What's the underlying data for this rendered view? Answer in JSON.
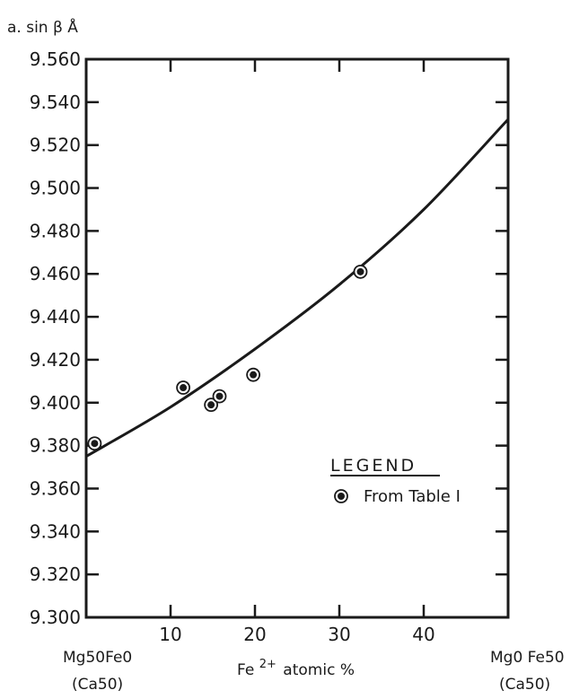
{
  "chart_data": {
    "type": "scatter",
    "title": "",
    "ylabel": "a. sin β Å",
    "xlabel": "Fe2+ atomic %",
    "xlabel_main": "Fe",
    "xlabel_sup": "2+",
    "xlabel_rest": "atomic %",
    "xlim": [
      0,
      50
    ],
    "ylim": [
      9.3,
      9.56
    ],
    "x_ticks": [
      10,
      20,
      30,
      40
    ],
    "y_ticks": [
      "9.300",
      "9.320",
      "9.340",
      "9.360",
      "9.380",
      "9.400",
      "9.420",
      "9.440",
      "9.460",
      "9.480",
      "9.500",
      "9.520",
      "9.540",
      "9.560"
    ],
    "end_labels": {
      "left": {
        "line1": "Mg50Fe0",
        "line2": "(Ca50)"
      },
      "right": {
        "line1": "Mg0 Fe50",
        "line2": "(Ca50)"
      }
    },
    "series": [
      {
        "name": "From Table I",
        "kind": "points",
        "points": [
          {
            "x": 1.0,
            "y": 9.381
          },
          {
            "x": 11.5,
            "y": 9.407
          },
          {
            "x": 14.8,
            "y": 9.399
          },
          {
            "x": 15.8,
            "y": 9.403
          },
          {
            "x": 19.8,
            "y": 9.413
          },
          {
            "x": 32.5,
            "y": 9.461
          }
        ]
      },
      {
        "name": "fit",
        "kind": "curve",
        "points": [
          {
            "x": 0,
            "y": 9.375
          },
          {
            "x": 10,
            "y": 9.398
          },
          {
            "x": 20,
            "y": 9.425
          },
          {
            "x": 30,
            "y": 9.455
          },
          {
            "x": 40,
            "y": 9.49
          },
          {
            "x": 50,
            "y": 9.532
          }
        ]
      }
    ],
    "legend": {
      "title": "LEGEND",
      "entries": [
        {
          "label": "From Table I"
        }
      ],
      "placement": "bottom-right"
    }
  }
}
